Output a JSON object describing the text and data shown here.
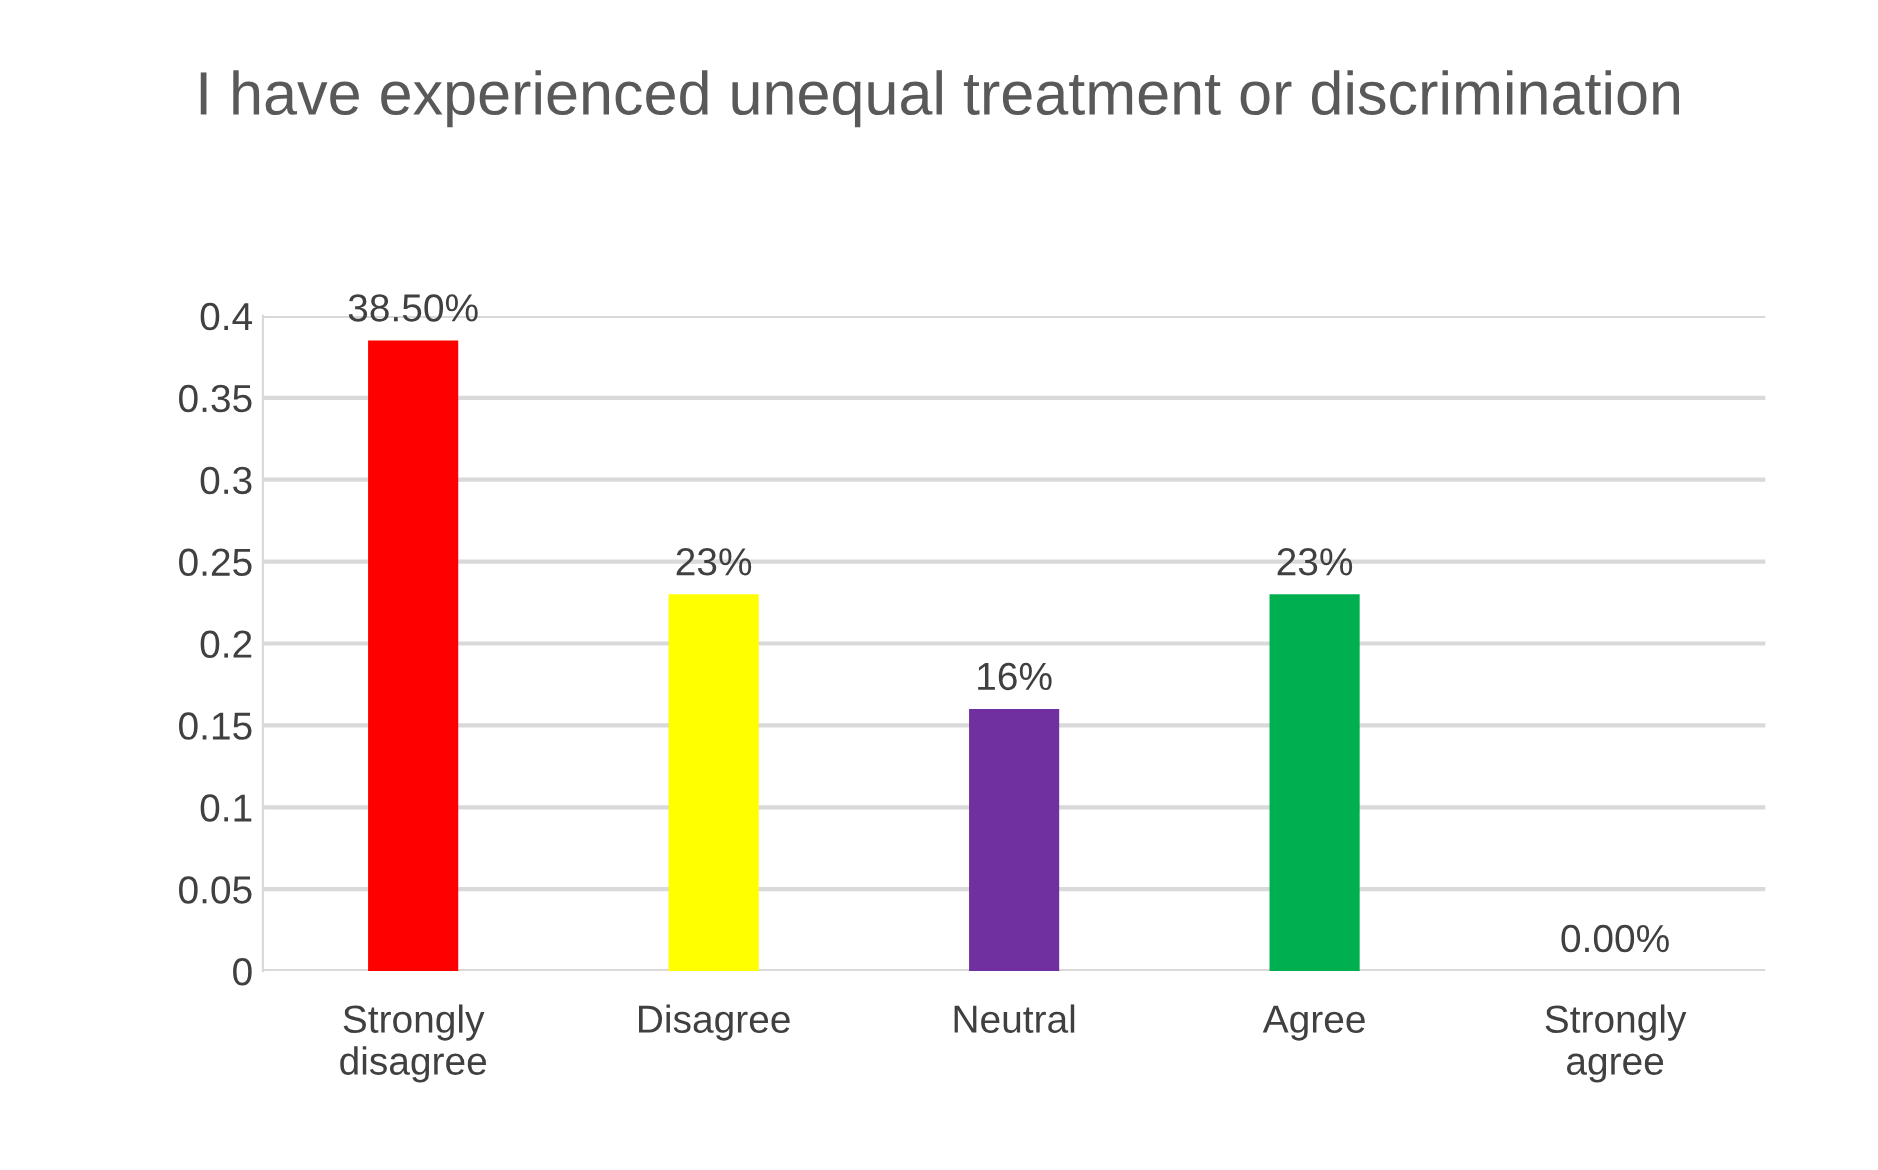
{
  "chart_data": {
    "type": "bar",
    "title": "I have experienced unequal treatment or discrimination",
    "categories": [
      "Strongly\ndisagree",
      "Disagree",
      "Neutral",
      "Agree",
      "Strongly\nagree"
    ],
    "values": [
      0.385,
      0.23,
      0.16,
      0.23,
      0.0
    ],
    "colors": [
      "#ff0000",
      "#ffff00",
      "#7030a0",
      "#00b050",
      "#005a9e"
    ],
    "value_labels": [
      "38.50%",
      "23%",
      "16%",
      "23%",
      "0.00%"
    ],
    "ylim": [
      0,
      0.4
    ],
    "yticks": [
      0,
      0.05,
      0.1,
      0.15,
      0.2,
      0.25,
      0.3,
      0.35,
      0.4
    ],
    "grid": "y"
  }
}
